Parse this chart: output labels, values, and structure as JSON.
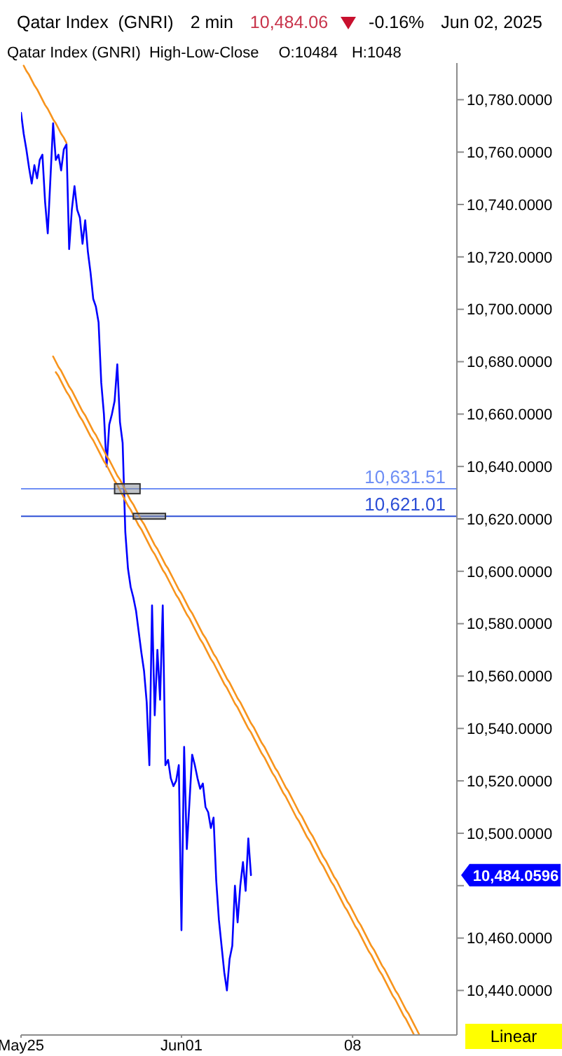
{
  "chart_data": {
    "type": "line",
    "title": "Qatar Index  (GNRI)",
    "subtitle": "Qatar Index (GNRI)  High-Low-Close",
    "annotations": [
      "2 min",
      "10,484.06",
      "-0.16%",
      "Jun 02, 2025",
      "O:10484",
      "H:1048",
      "10,484.0596",
      "Linear"
    ],
    "categories": [
      "May25",
      null,
      null,
      null,
      null,
      null,
      null,
      null,
      null,
      null,
      null,
      null,
      null,
      null,
      null,
      null,
      null,
      null,
      null,
      null,
      null,
      null,
      null,
      null,
      null,
      null,
      null,
      null,
      null,
      null,
      null,
      null,
      null,
      null,
      null,
      null,
      null,
      null,
      null,
      null,
      null,
      null,
      null,
      null,
      null,
      null,
      null,
      null,
      null,
      null,
      null,
      null,
      null,
      null,
      null,
      null,
      null,
      null,
      null,
      null,
      "Jun01",
      null,
      null,
      null,
      null,
      null,
      null,
      null,
      null,
      null,
      null,
      null,
      null,
      null,
      null,
      null,
      null,
      null,
      null,
      null,
      null,
      null,
      null,
      null,
      null,
      null,
      null,
      null,
      null,
      null,
      null,
      null,
      null,
      null,
      null,
      null,
      null,
      null,
      null,
      null,
      null,
      null,
      null,
      null,
      null,
      null,
      null,
      null,
      null,
      null,
      null,
      null,
      null,
      null,
      null,
      null,
      null,
      null,
      null,
      null,
      null,
      null,
      null,
      null,
      "08",
      null,
      null,
      null,
      null,
      null,
      null,
      null,
      null,
      null,
      null,
      null,
      null,
      null,
      null,
      null,
      null,
      null,
      null,
      null,
      null,
      null,
      null,
      null,
      null,
      null,
      null,
      null,
      null,
      null,
      null,
      null,
      null,
      null,
      null,
      null,
      null,
      null,
      null,
      null
    ],
    "ylim": [
      10423,
      10794
    ],
    "yticks": [
      {
        "value": 10440,
        "label": "10,440.0000"
      },
      {
        "value": 10460,
        "label": "10,460.0000"
      },
      {
        "value": 10480,
        "label": null
      },
      {
        "value": 10500,
        "label": "10,500.0000"
      },
      {
        "value": 10520,
        "label": "10,520.0000"
      },
      {
        "value": 10540,
        "label": "10,540.0000"
      },
      {
        "value": 10560,
        "label": "10,560.0000"
      },
      {
        "value": 10580,
        "label": "10,580.0000"
      },
      {
        "value": 10600,
        "label": "10,600.0000"
      },
      {
        "value": 10620,
        "label": "10,620.0000"
      },
      {
        "value": 10640,
        "label": "10,640.0000"
      },
      {
        "value": 10660,
        "label": "10,660.0000"
      },
      {
        "value": 10680,
        "label": "10,680.0000"
      },
      {
        "value": 10700,
        "label": "10,700.0000"
      },
      {
        "value": 10720,
        "label": "10,720.0000"
      },
      {
        "value": 10740,
        "label": "10,740.0000"
      },
      {
        "value": 10760,
        "label": "10,760.0000"
      },
      {
        "value": 10780,
        "label": "10,780.0000"
      }
    ],
    "ref_lines": [
      {
        "axis": "y",
        "value": 10631.51,
        "label": "10,631.51",
        "color": "#6f8ff5"
      },
      {
        "axis": "y",
        "value": 10621.01,
        "label": "10,621.01",
        "color": "#2d4fd6"
      }
    ],
    "series": [
      {
        "color": "#0000ff",
        "values": [
          10775,
          10767,
          10761,
          10754,
          10748,
          10755,
          10750,
          10757,
          10759,
          10741,
          10729,
          10750,
          10771,
          10757,
          10759,
          10753,
          10761,
          10763,
          10723,
          10738,
          10747,
          10738,
          10735,
          10725,
          10734,
          10722,
          10714,
          10704,
          10701,
          10695,
          10672,
          10660,
          10640,
          10656,
          10660,
          10665,
          10679,
          10657,
          10649,
          10615,
          10601,
          10594,
          10590,
          10585,
          10577,
          10569,
          10562,
          10550,
          10526,
          10587,
          10545,
          10570,
          10551,
          10587,
          10526,
          10528,
          10521,
          10518,
          10520,
          10526,
          10463,
          10533,
          10494,
          10512,
          10530,
          10526,
          10521,
          10517,
          10519,
          10510,
          10508,
          10502,
          10506,
          10482,
          10467,
          10457,
          10447,
          10440,
          10452,
          10457,
          10480,
          10466,
          10480,
          10489,
          10478,
          10498,
          10484,
          null,
          null,
          null,
          null,
          null,
          null,
          null,
          null,
          null,
          null,
          null,
          null,
          null,
          null,
          null,
          null,
          null,
          null,
          null,
          null,
          null,
          null,
          null,
          null,
          null,
          null,
          null,
          null,
          null,
          null,
          null,
          null,
          null,
          null,
          null,
          null,
          null,
          null,
          null,
          null,
          null,
          null,
          null,
          null,
          null,
          null,
          null,
          null,
          null,
          null,
          null,
          null,
          null,
          null,
          null,
          null,
          null,
          null,
          null,
          null,
          null,
          null,
          null,
          null,
          null,
          null,
          null,
          null,
          null,
          null,
          null,
          null,
          null,
          null,
          null,
          null,
          null
        ]
      },
      {
        "color": "#f7941d",
        "values": [
          null,
          10793,
          10791,
          10789.5,
          10787.5,
          10785.5,
          10784,
          10782,
          10780,
          10778,
          10776.5,
          10774.5,
          10772.5,
          10771,
          10769,
          10767,
          10765.5,
          10763.5,
          null,
          null,
          null,
          null,
          null,
          null,
          null,
          null,
          null,
          null,
          null,
          null,
          null,
          null,
          null,
          null,
          null,
          null,
          null,
          null,
          null,
          null,
          null,
          null,
          null,
          null,
          null,
          null,
          null,
          null,
          null,
          null,
          null,
          null,
          null,
          null,
          null,
          null,
          null,
          null,
          null,
          null,
          null,
          null,
          null,
          null,
          null,
          null,
          null,
          null,
          null,
          null,
          null,
          null,
          null,
          null,
          null,
          null,
          null,
          null,
          null,
          null,
          null,
          null,
          null,
          null,
          null,
          null,
          null,
          null,
          null,
          null,
          null,
          null,
          null,
          null,
          null,
          null,
          null,
          null,
          null,
          null,
          null,
          null,
          null,
          null,
          null,
          null,
          null,
          null,
          null,
          null,
          null,
          null,
          null,
          null,
          null,
          null,
          null,
          null,
          null,
          null,
          null,
          null,
          null,
          null,
          null,
          null,
          null,
          null,
          null,
          null,
          null,
          null,
          null,
          null,
          null,
          null,
          null,
          null,
          null,
          null,
          null,
          null,
          null,
          null,
          null,
          null,
          null,
          null,
          null,
          null,
          null,
          null,
          null,
          null,
          null,
          null,
          null,
          null,
          null,
          null,
          null,
          null,
          null,
          null
        ]
      },
      {
        "color": "#f7941d",
        "values": [
          null,
          null,
          null,
          null,
          null,
          null,
          null,
          null,
          null,
          null,
          null,
          null,
          10682,
          10680,
          10678,
          10676.5,
          10674.5,
          10672.5,
          10670.5,
          10669,
          10667,
          10665,
          10663,
          10661,
          10659.5,
          10657.5,
          10655.5,
          10653.5,
          10652,
          10650,
          10648,
          10646,
          10644,
          10642.5,
          10640.5,
          10638.5,
          10636.5,
          10635,
          10633,
          10631,
          10629,
          10627,
          10625.5,
          10623.5,
          10621.5,
          10619.5,
          10618,
          10616,
          10614,
          10612,
          10610,
          10608.5,
          10606.5,
          10604.5,
          10602.5,
          10601,
          10599,
          10597,
          10595,
          10593,
          10591.5,
          10589.5,
          10587.5,
          10585.5,
          10584,
          10582,
          10580,
          10578,
          10576,
          10574.5,
          10572.5,
          10570.5,
          10568.5,
          10567,
          10565,
          10563,
          10561,
          10559,
          10557.5,
          10555.5,
          10553.5,
          10551.5,
          10550,
          10548,
          10546,
          10544,
          10542,
          10540.5,
          10538.5,
          10536.5,
          10534.5,
          10533,
          10531,
          10529,
          10527,
          10525,
          10523.5,
          10521.5,
          10519.5,
          10517.5,
          10516,
          10514,
          10512,
          10510,
          10508,
          10506.5,
          10504.5,
          10502.5,
          10500.5,
          10499,
          10497,
          10495,
          10493,
          10491,
          10489.5,
          10487.5,
          10485.5,
          10483.5,
          10482,
          10480,
          10478,
          10476,
          10474,
          10472.5,
          10470.5,
          10468.5,
          10466.5,
          10465,
          10463,
          10461,
          10459,
          10457,
          10455.5,
          10453.5,
          10451.5,
          10449.5,
          10448,
          10446,
          10444,
          10442,
          10440,
          10438.5,
          10436.5,
          10434.5,
          10432.5,
          10431,
          10429,
          10427,
          10425,
          10423,
          null,
          null,
          null,
          null,
          null,
          null,
          null,
          null,
          null,
          null,
          null,
          null,
          null,
          null
        ]
      },
      {
        "color": "#f7941d",
        "values": [
          null,
          null,
          null,
          null,
          null,
          null,
          null,
          null,
          null,
          null,
          null,
          null,
          null,
          10676,
          10674.5,
          10672.5,
          10670.5,
          10668.5,
          10667,
          10665,
          10663,
          10661,
          10659,
          10657.5,
          10655.5,
          10653.5,
          10651.5,
          10650,
          10648,
          10646,
          10644,
          10642,
          10640.5,
          10638.5,
          10636.5,
          10634.5,
          10633,
          10631,
          10629,
          10627,
          10625,
          10623.5,
          10621.5,
          10619.5,
          10617.5,
          10616,
          10614,
          10612,
          10610,
          10608,
          10606.5,
          10604.5,
          10602.5,
          10600.5,
          10599,
          10597,
          10595,
          10593,
          10591,
          10589.5,
          10587.5,
          10585.5,
          10583.5,
          10582,
          10580,
          10578,
          10576,
          10574,
          10572.5,
          10570.5,
          10568.5,
          10566.5,
          10565,
          10563,
          10561,
          10559,
          10557,
          10555.5,
          10553.5,
          10551.5,
          10549.5,
          10548,
          10546,
          10544,
          10542,
          10540,
          10538.5,
          10536.5,
          10534.5,
          10532.5,
          10530.5,
          10529,
          10527,
          10525,
          10523,
          10521.5,
          10519.5,
          10517.5,
          10515.5,
          10514,
          10512,
          10510,
          10508,
          10506,
          10504.5,
          10502.5,
          10500.5,
          10498.5,
          10497,
          10495,
          10493,
          10491,
          10489,
          10487.5,
          10485.5,
          10483.5,
          10481.5,
          10480,
          10478,
          10476,
          10474,
          10472,
          10470.5,
          10468.5,
          10466.5,
          10464.5,
          10463,
          10461,
          10459,
          10457,
          10455,
          10453.5,
          10451.5,
          10449.5,
          10447.5,
          10446,
          10444,
          10442,
          10440,
          10438,
          10436.5,
          10434.5,
          10432.5,
          10430.5,
          10429,
          10427,
          10425,
          10423,
          null,
          null,
          null,
          null,
          null,
          null,
          null,
          null,
          null,
          null,
          null,
          null,
          null,
          null,
          null,
          null
        ]
      }
    ]
  }
}
